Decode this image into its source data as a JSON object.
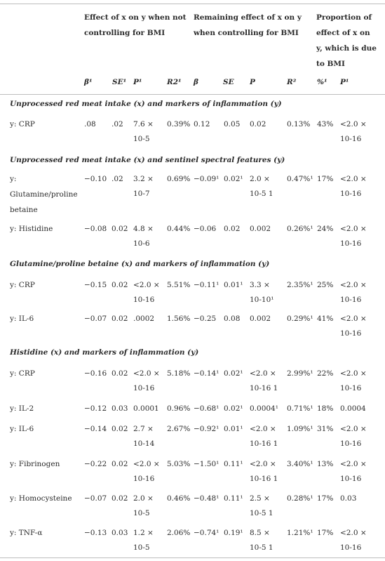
{
  "header": {
    "group1": [
      "Effect of x on y when not",
      "controlling for BMI"
    ],
    "group2": [
      "Remaining effect of x on y",
      "when controlling for BMI"
    ],
    "group3": [
      "Proportion of",
      "effect of x on",
      "y, which is due",
      "to BMI"
    ],
    "sub": {
      "beta1": "β¹",
      "se1": "SE¹",
      "p1": "P¹",
      "r2a": "R2¹",
      "beta": "β",
      "se": "SE",
      "p": "P",
      "r2": "R²",
      "pct": "%¹",
      "p2": "P¹"
    }
  },
  "sections": [
    {
      "title": "Unprocessed red meat intake (x) and markers of inflammation (y)",
      "rows": [
        {
          "label": [
            "y: CRP"
          ],
          "c1": ".08",
          "c2": ".02",
          "c3": [
            "7.6 ×",
            "10-5"
          ],
          "c4": "0.39%",
          "c5": "0.12",
          "c6": "0.05",
          "c7": [
            "0.02"
          ],
          "c8": "0.13%",
          "c9": "43%",
          "c10": [
            "<2.0 ×",
            "10-16"
          ]
        }
      ]
    },
    {
      "title": "Unprocessed red meat intake (x) and sentinel spectral features (y)",
      "rows": [
        {
          "label": [
            "y:",
            "Glutamine/proline",
            "betaine"
          ],
          "c1": "−0.10",
          "c2": ".02",
          "c3": [
            "3.2 ×",
            "10-7"
          ],
          "c4": "0.69%",
          "c5": "−0.09¹",
          "c6": "0.02¹",
          "c7": [
            "2.0 ×",
            "10-5 1"
          ],
          "c8": "0.47%¹",
          "c9": "17%",
          "c10": [
            "<2.0 ×",
            "10-16"
          ]
        },
        {
          "label": [
            "y: Histidine"
          ],
          "c1": "−0.08",
          "c2": "0.02",
          "c3": [
            "4.8 ×",
            "10-6"
          ],
          "c4": "0.44%",
          "c5": "−0.06",
          "c6": "0.02",
          "c7": [
            "0.002"
          ],
          "c8": "0.26%¹",
          "c9": "24%",
          "c10": [
            "<2.0 ×",
            "10-16"
          ]
        }
      ]
    },
    {
      "title": "Glutamine/proline betaine (x) and markers of inflammation (y)",
      "rows": [
        {
          "label": [
            "y: CRP"
          ],
          "c1": "−0.15",
          "c2": "0.02",
          "c3": [
            "<2.0 ×",
            "10-16"
          ],
          "c4": "5.51%",
          "c5": "−0.11¹",
          "c6": "0.01¹",
          "c7": [
            "3.3 ×",
            "10-10¹"
          ],
          "c8": "2.35%¹",
          "c9": "25%",
          "c10": [
            "<2.0 ×",
            "10-16"
          ]
        },
        {
          "label": [
            "y: IL-6"
          ],
          "c1": "−0.07",
          "c2": "0.02",
          "c3": [
            ".0002"
          ],
          "c4": "1.56%",
          "c5": "−0.25",
          "c6": "0.08",
          "c7": [
            "0.002"
          ],
          "c8": "0.29%¹",
          "c9": "41%",
          "c10": [
            "<2.0 ×",
            "10-16"
          ]
        }
      ]
    },
    {
      "title": "Histidine (x) and markers of inflammation (y)",
      "rows": [
        {
          "label": [
            "y: CRP"
          ],
          "c1": "−0.16",
          "c2": "0.02",
          "c3": [
            "<2.0 ×",
            "10-16"
          ],
          "c4": "5.18%",
          "c5": "−0.14¹",
          "c6": "0.02¹",
          "c7": [
            "<2.0 ×",
            "10-16 1"
          ],
          "c8": "2.99%¹",
          "c9": "22%",
          "c10": [
            "<2.0 ×",
            "10-16"
          ]
        },
        {
          "label": [
            "y: IL-2"
          ],
          "c1": "−0.12",
          "c2": "0.03",
          "c3": [
            "0.0001"
          ],
          "c4": "0.96%",
          "c5": "−0.68¹",
          "c6": "0.02¹",
          "c7": [
            "0.0004¹"
          ],
          "c8": "0.71%¹",
          "c9": "18%",
          "c10": [
            "0.0004"
          ]
        },
        {
          "label": [
            "y: IL-6"
          ],
          "c1": "−0.14",
          "c2": "0.02",
          "c3": [
            "2.7 ×",
            "10-14"
          ],
          "c4": "2.67%",
          "c5": "−0.92¹",
          "c6": "0.01¹",
          "c7": [
            "<2.0 ×",
            "10-16 1"
          ],
          "c8": "1.09%¹",
          "c9": "31%",
          "c10": [
            "<2.0 ×",
            "10-16"
          ]
        },
        {
          "label": [
            "y: Fibrinogen"
          ],
          "c1": "−0.22",
          "c2": "0.02",
          "c3": [
            "<2.0 ×",
            "10-16"
          ],
          "c4": "5.03%",
          "c5": "−1.50¹",
          "c6": "0.11¹",
          "c7": [
            "<2.0 ×",
            "10-16 1"
          ],
          "c8": "3.40%¹",
          "c9": "13%",
          "c10": [
            "<2.0 ×",
            "10-16"
          ]
        },
        {
          "label": [
            "y: Homocysteine"
          ],
          "c1": "−0.07",
          "c2": "0.02",
          "c3": [
            "2.0 ×",
            "10-5"
          ],
          "c4": "0.46%",
          "c5": "−0.48¹",
          "c6": "0.11¹",
          "c7": [
            "2.5 ×",
            "10-5 1"
          ],
          "c8": "0.28%¹",
          "c9": "17%",
          "c10": [
            "0.03"
          ]
        },
        {
          "label": [
            "y: TNF-α"
          ],
          "c1": "−0.13",
          "c2": "0.03",
          "c3": [
            "1.2 ×",
            "10-5"
          ],
          "c4": "2.06%",
          "c5": "−0.74¹",
          "c6": "0.19¹",
          "c7": [
            "8.5 ×",
            "10-5 1"
          ],
          "c8": "1.21%¹",
          "c9": "17%",
          "c10": [
            "<2.0 ×",
            "10-16"
          ]
        }
      ]
    }
  ]
}
